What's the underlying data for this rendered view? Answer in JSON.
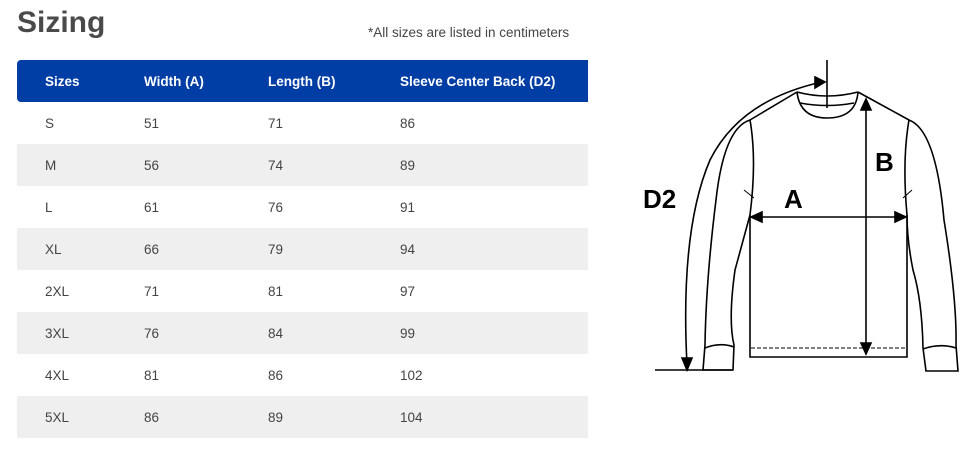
{
  "title": "Sizing",
  "note": "*All sizes are listed in centimeters",
  "table": {
    "headers": [
      "Sizes",
      "Width (A)",
      "Length (B)",
      "Sleeve Center Back (D2)"
    ],
    "rows": [
      [
        "S",
        "51",
        "71",
        "86"
      ],
      [
        "M",
        "56",
        "74",
        "89"
      ],
      [
        "L",
        "61",
        "76",
        "91"
      ],
      [
        "XL",
        "66",
        "79",
        "94"
      ],
      [
        "2XL",
        "71",
        "81",
        "97"
      ],
      [
        "3XL",
        "76",
        "84",
        "99"
      ],
      [
        "4XL",
        "81",
        "86",
        "102"
      ],
      [
        "5XL",
        "86",
        "89",
        "104"
      ]
    ]
  },
  "diagram": {
    "label_a": "A",
    "label_b": "B",
    "label_d2": "D2"
  },
  "colors": {
    "header": "#003da5",
    "alt_row": "#f0eff0"
  }
}
